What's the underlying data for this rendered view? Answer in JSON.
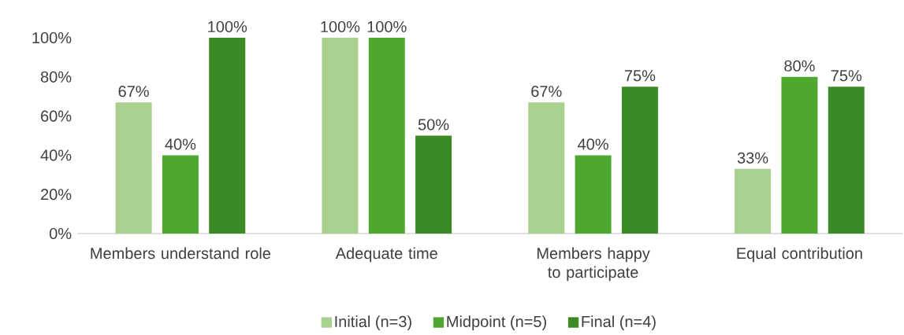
{
  "chart_data": {
    "type": "bar",
    "categories": [
      "Members understand role",
      "Adequate time",
      "Members happy to participate",
      "Equal contribution"
    ],
    "series": [
      {
        "name": "Initial (n=3)",
        "color": "#a9d08e",
        "values": [
          67,
          100,
          67,
          33
        ],
        "value_labels": [
          "67%",
          "100%",
          "67%",
          "33%"
        ]
      },
      {
        "name": "Midpoint (n=5)",
        "color": "#4ea72e",
        "values": [
          40,
          100,
          40,
          80
        ],
        "value_labels": [
          "40%",
          "100%",
          "40%",
          "80%"
        ]
      },
      {
        "name": "Final (n=4)",
        "color": "#3b8a26",
        "values": [
          100,
          50,
          75,
          75
        ],
        "value_labels": [
          "100%",
          "50%",
          "75%",
          "75%"
        ]
      }
    ],
    "ylim": [
      0,
      100
    ],
    "yticks": [
      {
        "value": 0,
        "label": "0%"
      },
      {
        "value": 20,
        "label": "20%"
      },
      {
        "value": 40,
        "label": "40%"
      },
      {
        "value": 60,
        "label": "60%"
      },
      {
        "value": 80,
        "label": "80%"
      },
      {
        "value": 100,
        "label": "100%"
      }
    ],
    "legend": "bottom"
  }
}
